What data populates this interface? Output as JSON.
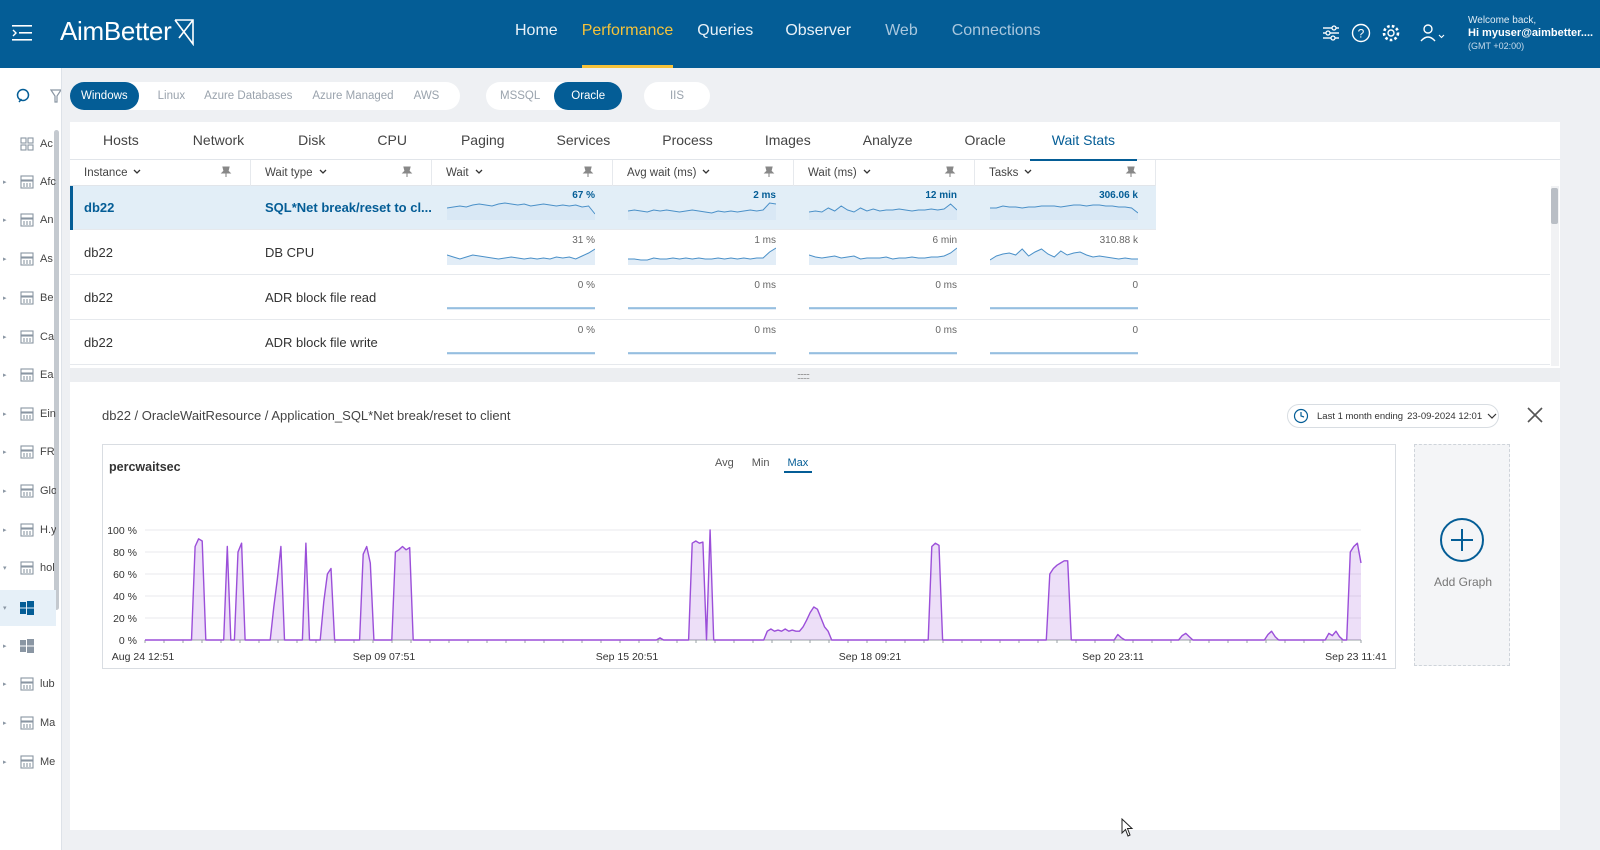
{
  "app": {
    "brand": "AimBetter"
  },
  "nav": [
    "Home",
    "Performance",
    "Queries",
    "Observer",
    "Web",
    "Connections"
  ],
  "nav_active": "Performance",
  "user": {
    "greeting": "Welcome back,",
    "name": "Hi myuser@aimbetter....",
    "tz": "(GMT +02:00)"
  },
  "sidebar": {
    "items": [
      {
        "label": "Ac",
        "icon": "grid-icon"
      },
      {
        "label": "Afc",
        "icon": "server-icon"
      },
      {
        "label": "An",
        "icon": "server-icon"
      },
      {
        "label": "As",
        "icon": "server-icon"
      },
      {
        "label": "Be",
        "icon": "server-icon"
      },
      {
        "label": "Ca",
        "icon": "server-icon"
      },
      {
        "label": "Ea",
        "icon": "server-icon"
      },
      {
        "label": "Ein",
        "icon": "server-icon"
      },
      {
        "label": "FR",
        "icon": "server-icon"
      },
      {
        "label": "Glo",
        "icon": "server-icon"
      },
      {
        "label": "H.y",
        "icon": "server-icon"
      },
      {
        "label": "hol",
        "icon": "server-icon"
      },
      {
        "label": "",
        "icon": "windows-icon"
      },
      {
        "label": "",
        "icon": "windows-icon"
      },
      {
        "label": "lub",
        "icon": "server-icon"
      },
      {
        "label": "Ma",
        "icon": "server-icon"
      },
      {
        "label": "Me",
        "icon": "server-icon"
      }
    ]
  },
  "filters": {
    "os": [
      "Windows",
      "Linux",
      "Azure Databases",
      "Azure Managed",
      "AWS"
    ],
    "db": [
      "MSSQL",
      "Oracle"
    ],
    "web": [
      "IIS"
    ],
    "active_os": "Windows",
    "active_db": "Oracle"
  },
  "tabs": [
    "Hosts",
    "Network",
    "Disk",
    "CPU",
    "Paging",
    "Services",
    "Process",
    "Images",
    "Analyze",
    "Oracle",
    "Wait Stats"
  ],
  "active_tab": "Wait Stats",
  "grid": {
    "columns": [
      "Instance",
      "Wait type",
      "Wait",
      "Avg wait (ms)",
      "Wait (ms)",
      "Tasks"
    ],
    "rows": [
      {
        "instance": "db22",
        "wait_type": "SQL*Net break/reset to cl...",
        "wait": "67 %",
        "avg_wait": "2 ms",
        "wait_ms": "12 min",
        "tasks": "306.06 k",
        "selected": true
      },
      {
        "instance": "db22",
        "wait_type": "DB CPU",
        "wait": "31 %",
        "avg_wait": "1 ms",
        "wait_ms": "6 min",
        "tasks": "310.88 k",
        "selected": false
      },
      {
        "instance": "db22",
        "wait_type": "ADR block file read",
        "wait": "0 %",
        "avg_wait": "0 ms",
        "wait_ms": "0 ms",
        "tasks": "0",
        "selected": false
      },
      {
        "instance": "db22",
        "wait_type": "ADR block file write",
        "wait": "0 %",
        "avg_wait": "0 ms",
        "wait_ms": "0 ms",
        "tasks": "0",
        "selected": false
      }
    ]
  },
  "detail": {
    "breadcrumb": "db22 / OracleWaitResource / Application_SQL*Net break/reset to client",
    "range_label": "Last 1 month ending",
    "range_end": "23-09-2024 12:01",
    "aggregations": [
      "Avg",
      "Min",
      "Max"
    ],
    "active_aggregation": "Max",
    "add_graph_label": "Add Graph"
  },
  "chart_data": {
    "type": "area",
    "title": "percwaitsec",
    "y_unit": "%",
    "ylim": [
      0,
      100
    ],
    "y_ticks": [
      "0 %",
      "20 %",
      "40 %",
      "60 %",
      "80 %",
      "100 %"
    ],
    "x_tick_labels": [
      "Aug 24 12:51",
      "Sep 09 07:51",
      "Sep 15 20:51",
      "Sep 18 09:21",
      "Sep 20 23:11",
      "Sep 23 11:41"
    ],
    "color": "#9b4fd9",
    "grid": true,
    "series": [
      {
        "values": [
          0,
          0,
          0,
          0,
          0,
          0,
          0,
          0,
          0,
          0,
          0,
          0,
          0,
          0,
          85,
          92,
          90,
          0,
          0,
          0,
          0,
          0,
          0,
          85,
          0,
          0,
          80,
          88,
          0,
          0,
          0,
          0,
          0,
          0,
          0,
          0,
          30,
          55,
          85,
          0,
          0,
          0,
          0,
          0,
          0,
          88,
          0,
          0,
          0,
          0,
          35,
          60,
          65,
          0,
          0,
          0,
          0,
          0,
          0,
          0,
          0,
          78,
          85,
          70,
          0,
          0,
          0,
          0,
          0,
          0,
          80,
          82,
          85,
          82,
          84,
          0,
          0,
          0,
          0,
          0,
          0,
          0,
          0,
          0,
          0,
          0,
          0,
          0,
          0,
          0,
          0,
          0,
          0,
          0,
          0,
          0,
          0,
          0,
          0,
          0,
          0,
          0,
          0,
          0,
          0,
          0,
          0,
          0,
          0,
          0,
          0,
          0,
          0,
          0,
          0,
          0,
          0,
          0,
          0,
          0,
          0,
          0,
          0,
          0,
          0,
          0,
          0,
          0,
          0,
          0,
          0,
          0,
          0,
          0,
          0,
          0,
          0,
          0,
          0,
          0,
          0,
          0,
          0,
          0,
          2,
          0,
          0,
          0,
          0,
          0,
          0,
          0,
          0,
          88,
          90,
          88,
          89,
          0,
          100,
          0,
          0,
          0,
          0,
          0,
          0,
          0,
          0,
          0,
          0,
          0,
          0,
          0,
          0,
          0,
          8,
          10,
          8,
          9,
          8,
          10,
          8,
          9,
          8,
          8,
          12,
          18,
          25,
          30,
          28,
          20,
          12,
          8,
          0,
          0,
          0,
          0,
          0,
          0,
          0,
          0,
          0,
          0,
          0,
          0,
          0,
          0,
          0,
          0,
          0,
          0,
          0,
          0,
          0,
          0,
          0,
          0,
          0,
          0,
          0,
          0,
          85,
          88,
          86,
          0,
          0,
          0,
          0,
          0,
          0,
          0,
          0,
          0,
          0,
          0,
          0,
          0,
          0,
          0,
          0,
          0,
          0,
          0,
          0,
          0,
          0,
          0,
          0,
          0,
          0,
          0,
          0,
          0,
          0,
          60,
          65,
          68,
          70,
          72,
          72,
          0,
          0,
          0,
          0,
          0,
          0,
          0,
          0,
          0,
          0,
          0,
          0,
          0,
          5,
          2,
          0,
          0,
          0,
          0,
          0,
          0,
          0,
          0,
          0,
          0,
          0,
          0,
          0,
          0,
          0,
          0,
          4,
          6,
          3,
          0,
          0,
          0,
          0,
          0,
          0,
          0,
          0,
          0,
          0,
          0,
          0,
          0,
          0,
          0,
          0,
          0,
          0,
          0,
          0,
          0,
          5,
          8,
          3,
          0,
          0,
          0,
          0,
          0,
          0,
          0,
          0,
          0,
          0,
          0,
          0,
          0,
          0,
          6,
          4,
          8,
          3,
          0,
          0,
          80,
          85,
          88,
          70
        ]
      }
    ]
  },
  "colors": {
    "brand": "#045d96",
    "accent": "#f5c23a",
    "series": "#9b4fd9",
    "spark": "#4a90c8"
  }
}
